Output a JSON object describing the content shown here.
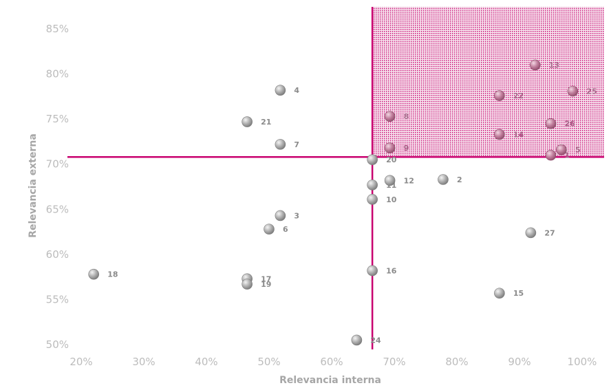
{
  "chart_data": {
    "type": "scatter",
    "title": "",
    "xlabel": "Relevancia interna",
    "ylabel": "Relevancia externa",
    "xlim": [
      20,
      100
    ],
    "ylim": [
      50,
      85
    ],
    "x_ticks": [
      "20%",
      "30%",
      "40%",
      "50%",
      "60%",
      "70%",
      "80%",
      "90%",
      "100%"
    ],
    "y_ticks": [
      "50%",
      "55%",
      "60%",
      "65%",
      "70%",
      "75%",
      "80%",
      "85%"
    ],
    "x_tick_values": [
      20,
      30,
      40,
      50,
      60,
      70,
      80,
      90,
      100
    ],
    "y_tick_values": [
      50,
      55,
      60,
      65,
      70,
      75,
      80,
      85
    ],
    "threshold_x": 66.5,
    "threshold_y": 70.8,
    "grid": false,
    "colors": {
      "threshold_line": "#c8006e",
      "quadrant_dots": "#c8006e",
      "point_gray": "#a0a0a0",
      "point_highlight": "#b86a8e"
    },
    "points": [
      {
        "label": "1",
        "x": 95.0,
        "y": 71.0,
        "highlight": true
      },
      {
        "label": "2",
        "x": 77.8,
        "y": 68.3,
        "highlight": false
      },
      {
        "label": "3",
        "x": 51.8,
        "y": 64.3,
        "highlight": false
      },
      {
        "label": "4",
        "x": 51.8,
        "y": 78.2,
        "highlight": false
      },
      {
        "label": "5",
        "x": 96.7,
        "y": 71.6,
        "highlight": true
      },
      {
        "label": "6",
        "x": 50.0,
        "y": 62.8,
        "highlight": false
      },
      {
        "label": "7",
        "x": 51.8,
        "y": 72.2,
        "highlight": false
      },
      {
        "label": "8",
        "x": 69.3,
        "y": 75.3,
        "highlight": true
      },
      {
        "label": "9",
        "x": 69.3,
        "y": 71.8,
        "highlight": true
      },
      {
        "label": "10",
        "x": 66.5,
        "y": 66.1,
        "highlight": false
      },
      {
        "label": "11",
        "x": 66.5,
        "y": 67.7,
        "highlight": false
      },
      {
        "label": "12",
        "x": 69.3,
        "y": 68.2,
        "highlight": false
      },
      {
        "label": "13",
        "x": 92.5,
        "y": 81.0,
        "highlight": true
      },
      {
        "label": "14",
        "x": 86.8,
        "y": 73.3,
        "highlight": true
      },
      {
        "label": "15",
        "x": 86.8,
        "y": 55.7,
        "highlight": false
      },
      {
        "label": "16",
        "x": 66.5,
        "y": 58.2,
        "highlight": false
      },
      {
        "label": "17",
        "x": 46.5,
        "y": 57.3,
        "highlight": false
      },
      {
        "label": "18",
        "x": 22.0,
        "y": 57.8,
        "highlight": false
      },
      {
        "label": "19",
        "x": 46.5,
        "y": 56.7,
        "highlight": false
      },
      {
        "label": "20",
        "x": 66.5,
        "y": 70.5,
        "highlight": false
      },
      {
        "label": "21",
        "x": 46.5,
        "y": 74.7,
        "highlight": false
      },
      {
        "label": "22",
        "x": 86.8,
        "y": 77.6,
        "highlight": true
      },
      {
        "label": "24",
        "x": 64.0,
        "y": 50.5,
        "highlight": false
      },
      {
        "label": "25",
        "x": 98.5,
        "y": 78.1,
        "highlight": true
      },
      {
        "label": "26",
        "x": 95.0,
        "y": 74.5,
        "highlight": true
      },
      {
        "label": "27",
        "x": 91.8,
        "y": 62.4,
        "highlight": false
      }
    ]
  }
}
